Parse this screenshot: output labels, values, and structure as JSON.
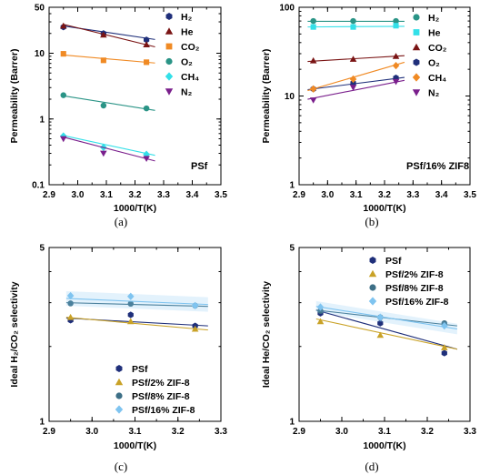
{
  "chart_data": [
    {
      "type": "scatter",
      "panel_label": "(a)",
      "annotation": "PSf",
      "xlabel": "1000/T(K)",
      "ylabel": "Permeability (Barrer)",
      "xlim": [
        2.9,
        3.5
      ],
      "ylim": [
        0.1,
        50
      ],
      "yscale": "log",
      "x_ticks": [
        "2.9",
        "3.0",
        "3.1",
        "3.2",
        "3.3",
        "3.4",
        "3.5"
      ],
      "y_ticks": [
        "0.1",
        "1",
        "10",
        "50"
      ],
      "legend_position": "top-right",
      "series": [
        {
          "name": "H₂",
          "color": "#1f2f7a",
          "marker": "hexagon",
          "x": [
            2.95,
            3.09,
            3.24
          ],
          "y": [
            25,
            20,
            16
          ],
          "fit": [
            [
              2.95,
              26
            ],
            [
              3.27,
              16.2
            ]
          ]
        },
        {
          "name": "He",
          "color": "#7a1414",
          "marker": "triangle-up",
          "x": [
            2.95,
            3.09,
            3.24
          ],
          "y": [
            26,
            19,
            13.5
          ],
          "fit": [
            [
              2.95,
              27.5
            ],
            [
              3.27,
              12.5
            ]
          ]
        },
        {
          "name": "CO₂",
          "color": "#f08a24",
          "marker": "square",
          "x": [
            2.95,
            3.09,
            3.24
          ],
          "y": [
            9.8,
            7.8,
            7.3
          ],
          "fit": [
            [
              2.95,
              9.4
            ],
            [
              3.27,
              7.1
            ]
          ]
        },
        {
          "name": "O₂",
          "color": "#2a9486",
          "marker": "circle",
          "x": [
            2.95,
            3.09,
            3.24
          ],
          "y": [
            2.3,
            1.6,
            1.45
          ],
          "fit": [
            [
              2.95,
              2.25
            ],
            [
              3.27,
              1.35
            ]
          ]
        },
        {
          "name": "CH₄",
          "color": "#33e0e8",
          "marker": "diamond",
          "x": [
            2.95,
            3.09,
            3.24
          ],
          "y": [
            0.55,
            0.37,
            0.29
          ],
          "fit": [
            [
              2.95,
              0.56
            ],
            [
              3.27,
              0.28
            ]
          ]
        },
        {
          "name": "N₂",
          "color": "#7a1f8c",
          "marker": "triangle-down",
          "x": [
            2.95,
            3.09,
            3.24
          ],
          "y": [
            0.5,
            0.3,
            0.25
          ],
          "fit": [
            [
              2.95,
              0.53
            ],
            [
              3.27,
              0.23
            ]
          ]
        }
      ]
    },
    {
      "type": "scatter",
      "panel_label": "(b)",
      "annotation": "PSf/16% ZIF8",
      "xlabel": "1000/T(K)",
      "ylabel": "Permeability (Barrer)",
      "xlim": [
        2.9,
        3.5
      ],
      "ylim": [
        1,
        100
      ],
      "yscale": "log",
      "x_ticks": [
        "2.9",
        "3.0",
        "3.1",
        "3.2",
        "3.3",
        "3.4",
        "3.5"
      ],
      "y_ticks": [
        "1",
        "10",
        "100"
      ],
      "legend_position": "top-right",
      "series": [
        {
          "name": "H₂",
          "color": "#2a9486",
          "marker": "circle",
          "x": [
            2.95,
            3.09,
            3.24
          ],
          "y": [
            70,
            70,
            70
          ],
          "fit": [
            [
              2.93,
              69.5
            ],
            [
              3.27,
              69.5
            ]
          ]
        },
        {
          "name": "He",
          "color": "#33e0e8",
          "marker": "square",
          "x": [
            2.95,
            3.09,
            3.24
          ],
          "y": [
            60,
            60,
            62
          ],
          "fit": [
            [
              2.93,
              60
            ],
            [
              3.27,
              61
            ]
          ]
        },
        {
          "name": "CO₂",
          "color": "#7a1414",
          "marker": "triangle-up",
          "x": [
            2.95,
            3.09,
            3.24
          ],
          "y": [
            25,
            26,
            28
          ],
          "fit": [
            [
              2.93,
              24.5
            ],
            [
              3.27,
              28.5
            ]
          ]
        },
        {
          "name": "O₂",
          "color": "#1f2f7a",
          "marker": "hexagon",
          "x": [
            2.95,
            3.09,
            3.24
          ],
          "y": [
            12,
            14,
            16
          ],
          "fit": [
            [
              2.93,
              11.8
            ],
            [
              3.27,
              16.2
            ]
          ]
        },
        {
          "name": "CH₄",
          "color": "#f08a24",
          "marker": "diamond",
          "x": [
            2.95,
            3.09,
            3.24
          ],
          "y": [
            12,
            15.5,
            22
          ],
          "fit": [
            [
              2.93,
              11.5
            ],
            [
              3.27,
              24
            ]
          ]
        },
        {
          "name": "N₂",
          "color": "#7a1f8c",
          "marker": "triangle-down",
          "x": [
            2.95,
            3.09,
            3.24
          ],
          "y": [
            9,
            12.5,
            14.5
          ],
          "fit": [
            [
              2.93,
              9.2
            ],
            [
              3.27,
              15
            ]
          ]
        }
      ]
    },
    {
      "type": "scatter",
      "panel_label": "(c)",
      "xlabel": "1000/T(K)",
      "ylabel": "Ideal H₂/CO₂ selectivity",
      "xlim": [
        2.9,
        3.3
      ],
      "ylim": [
        1,
        5
      ],
      "yscale": "log",
      "x_ticks": [
        "2.9",
        "3.0",
        "3.1",
        "3.2",
        "3.3"
      ],
      "y_ticks": [
        "1",
        "5"
      ],
      "legend_position": "bottom-center",
      "series": [
        {
          "name": "PSf",
          "color": "#1f2f7a",
          "marker": "hexagon",
          "x": [
            2.95,
            3.09,
            3.24
          ],
          "y": [
            2.55,
            2.68,
            2.42
          ],
          "fit": [
            [
              2.94,
              2.6
            ],
            [
              3.27,
              2.42
            ]
          ]
        },
        {
          "name": "PSf/2% ZIF-8",
          "color": "#c9a227",
          "marker": "triangle-up",
          "x": [
            2.95,
            3.09,
            3.24
          ],
          "y": [
            2.62,
            2.52,
            2.35
          ],
          "fit": [
            [
              2.94,
              2.62
            ],
            [
              3.27,
              2.33
            ]
          ]
        },
        {
          "name": "PSf/8% ZIF-8",
          "color": "#3d6f86",
          "marker": "circle",
          "x": [
            2.95,
            3.09,
            3.24
          ],
          "y": [
            2.98,
            2.97,
            2.92
          ],
          "fit": [
            [
              2.94,
              3.0
            ],
            [
              3.27,
              2.9
            ]
          ]
        },
        {
          "name": "PSf/16% ZIF-8",
          "color": "#7fc4f0",
          "marker": "diamond",
          "x": [
            2.95,
            3.09,
            3.24
          ],
          "y": [
            3.2,
            3.18,
            2.92
          ],
          "fit": [
            [
              2.94,
              3.12
            ],
            [
              3.27,
              2.95
            ]
          ],
          "band": 0.07
        }
      ]
    },
    {
      "type": "scatter",
      "panel_label": "(d)",
      "xlabel": "1000/T(K)",
      "ylabel": "Ideal He/CO₂ selectivity",
      "xlim": [
        2.9,
        3.3
      ],
      "ylim": [
        1,
        5
      ],
      "yscale": "log",
      "x_ticks": [
        "2.9",
        "3.0",
        "3.1",
        "3.2",
        "3.3"
      ],
      "y_ticks": [
        "1",
        "5"
      ],
      "legend_position": "top-center",
      "series": [
        {
          "name": "PSf",
          "color": "#1f2f7a",
          "marker": "hexagon",
          "x": [
            2.95,
            3.09,
            3.24
          ],
          "y": [
            2.72,
            2.48,
            1.88
          ],
          "fit": [
            [
              2.94,
              2.8
            ],
            [
              3.27,
              1.95
            ]
          ]
        },
        {
          "name": "PSf/2% ZIF-8",
          "color": "#c9a227",
          "marker": "triangle-up",
          "x": [
            2.95,
            3.09,
            3.24
          ],
          "y": [
            2.52,
            2.22,
            1.98
          ],
          "fit": [
            [
              2.94,
              2.58
            ],
            [
              3.27,
              1.95
            ]
          ]
        },
        {
          "name": "PSf/8% ZIF-8",
          "color": "#3d6f86",
          "marker": "circle",
          "x": [
            2.95,
            3.09,
            3.24
          ],
          "y": [
            2.78,
            2.62,
            2.48
          ],
          "fit": [
            [
              2.94,
              2.8
            ],
            [
              3.27,
              2.42
            ]
          ]
        },
        {
          "name": "PSf/16% ZIF-8",
          "color": "#7fc4f0",
          "marker": "diamond",
          "x": [
            2.95,
            3.09,
            3.24
          ],
          "y": [
            2.88,
            2.62,
            2.42
          ],
          "fit": [
            [
              2.94,
              2.9
            ],
            [
              3.27,
              2.35
            ]
          ],
          "band": 0.05
        }
      ]
    }
  ]
}
